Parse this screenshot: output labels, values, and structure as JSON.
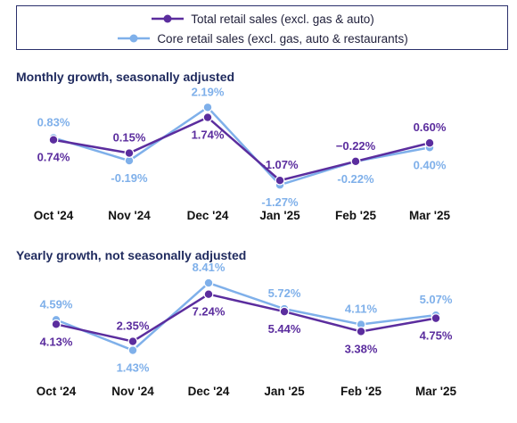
{
  "legend": {
    "position": "top",
    "items": [
      {
        "label": "Total retail sales (excl. gas & auto)",
        "color": "#5b2d9e"
      },
      {
        "label": "Core retail sales (excl. gas, auto & restaurants)",
        "color": "#7fb0ea"
      }
    ]
  },
  "chart_data": [
    {
      "type": "line",
      "title": "Monthly growth, seasonally adjusted",
      "categories": [
        "Oct '24",
        "Nov '24",
        "Dec '24",
        "Jan '25",
        "Feb '25",
        "Mar '25"
      ],
      "ylim": [
        -1.5,
        2.4
      ],
      "grid": false,
      "series": [
        {
          "name": "Total retail sales (excl. gas & auto)",
          "color": "#5b2d9e",
          "values": [
            0.74,
            0.15,
            1.74,
            -1.07,
            -0.22,
            0.6
          ],
          "labels": [
            "0.74%",
            "0.15%",
            "1.74%",
            "-1.07%",
            "−0.22%",
            "0.60%"
          ]
        },
        {
          "name": "Core retail sales (excl. gas, auto & restaurants)",
          "color": "#7fb0ea",
          "values": [
            0.83,
            -0.19,
            2.19,
            -1.27,
            -0.22,
            0.4
          ],
          "labels": [
            "0.83%",
            "-0.19%",
            "2.19%",
            "-1.27%",
            "-0.22%",
            "0.40%"
          ]
        }
      ]
    },
    {
      "type": "line",
      "title": "Yearly growth, not seasonally adjusted",
      "categories": [
        "Oct '24",
        "Nov '24",
        "Dec '24",
        "Jan '25",
        "Feb '25",
        "Mar '25"
      ],
      "ylim": [
        1.2,
        8.6
      ],
      "grid": false,
      "series": [
        {
          "name": "Total retail sales (excl. gas & auto)",
          "color": "#5b2d9e",
          "values": [
            4.13,
            2.35,
            7.24,
            5.44,
            3.38,
            4.75
          ],
          "labels": [
            "4.13%",
            "2.35%",
            "7.24%",
            "5.44%",
            "3.38%",
            "4.75%"
          ]
        },
        {
          "name": "Core retail sales (excl. gas, auto & restaurants)",
          "color": "#7fb0ea",
          "values": [
            4.59,
            1.43,
            8.41,
            5.72,
            4.11,
            5.07
          ],
          "labels": [
            "4.59%",
            "1.43%",
            "8.41%",
            "5.72%",
            "4.11%",
            "5.07%"
          ]
        }
      ]
    }
  ]
}
